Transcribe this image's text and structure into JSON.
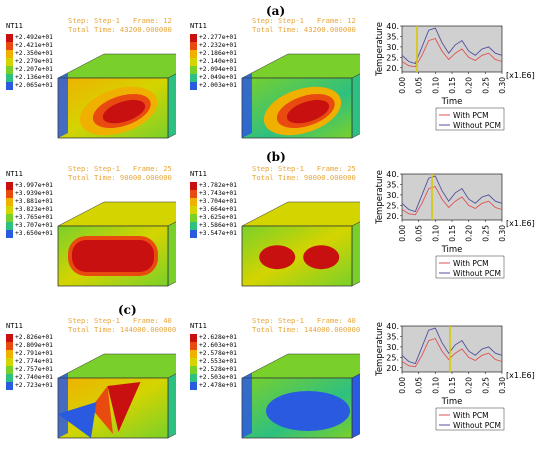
{
  "panels": [
    {
      "label": "(a)",
      "sims": [
        {
          "variable": "NT11",
          "step_line": "Step: Step-1   Frame: 12",
          "time_line": "Total Time: 43200.000000",
          "legend": [
            "+2.492e+01",
            "+2.421e+01",
            "+2.350e+01",
            "+2.279e+01",
            "+2.207e+01",
            "+2.136e+01",
            "+2.065e+01"
          ]
        },
        {
          "variable": "NT11",
          "step_line": "Step: Step-1   Frame: 12",
          "time_line": "Total Time: 43200.000000",
          "legend": [
            "+2.277e+01",
            "+2.232e+01",
            "+2.186e+01",
            "+2.140e+01",
            "+2.094e+01",
            "+2.049e+01",
            "+2.003e+01"
          ]
        }
      ],
      "marker_x": 0.045
    },
    {
      "label": "(b)",
      "sims": [
        {
          "variable": "NT11",
          "step_line": "Step: Step-1   Frame: 25",
          "time_line": "Total Time: 90000.000000",
          "legend": [
            "+3.997e+01",
            "+3.939e+01",
            "+3.881e+01",
            "+3.823e+01",
            "+3.765e+01",
            "+3.707e+01",
            "+3.650e+01"
          ]
        },
        {
          "variable": "NT11",
          "step_line": "Step: Step-1   Frame: 25",
          "time_line": "Total Time: 90000.000000",
          "legend": [
            "+3.782e+01",
            "+3.743e+01",
            "+3.704e+01",
            "+3.664e+01",
            "+3.625e+01",
            "+3.586e+01",
            "+3.547e+01"
          ]
        }
      ],
      "marker_x": 0.09
    },
    {
      "label": "(c)",
      "sims": [
        {
          "variable": "NT11",
          "step_line": "Step: Step-1   Frame: 40",
          "time_line": "Total Time: 144000.000000",
          "legend": [
            "+2.826e+01",
            "+2.809e+01",
            "+2.791e+01",
            "+2.774e+01",
            "+2.757e+01",
            "+2.740e+01",
            "+2.723e+01"
          ]
        },
        {
          "variable": "NT11",
          "step_line": "Step: Step-1   Frame: 40",
          "time_line": "Total Time: 144000.000000",
          "legend": [
            "+2.628e+01",
            "+2.603e+01",
            "+2.578e+01",
            "+2.553e+01",
            "+2.528e+01",
            "+2.503e+01",
            "+2.478e+01"
          ]
        }
      ],
      "marker_x": 0.144
    }
  ],
  "plot": {
    "ylabel": "Temperature",
    "xlabel": "Time",
    "scale_label": "[x1.E6]",
    "x_ticks": [
      "0.00",
      "0.05",
      "0.10",
      "0.15",
      "0.20",
      "0.25",
      "0.30"
    ],
    "y_ticks": [
      "20.",
      "25.",
      "30.",
      "35.",
      "40."
    ],
    "xlim": [
      0,
      0.3
    ],
    "ylim": [
      18,
      40
    ],
    "series": [
      {
        "name": "With PCM",
        "color": "#e05050",
        "x": [
          0,
          0.02,
          0.04,
          0.06,
          0.08,
          0.1,
          0.12,
          0.14,
          0.16,
          0.18,
          0.2,
          0.22,
          0.24,
          0.26,
          0.28,
          0.3
        ],
        "y": [
          23,
          21,
          20.5,
          26,
          33,
          34,
          28,
          24,
          27,
          29,
          25,
          23.5,
          26,
          27,
          24,
          23
        ]
      },
      {
        "name": "Without PCM",
        "color": "#5050a0",
        "x": [
          0,
          0.02,
          0.04,
          0.06,
          0.08,
          0.1,
          0.12,
          0.14,
          0.16,
          0.18,
          0.2,
          0.22,
          0.24,
          0.26,
          0.28,
          0.3
        ],
        "y": [
          26,
          23,
          22,
          30,
          38,
          39,
          32,
          27,
          31,
          33,
          28,
          26,
          29,
          30,
          27,
          26
        ]
      }
    ],
    "marker_color": "#d8c800"
  },
  "colors": {
    "contour": [
      "#c81010",
      "#e84a10",
      "#f0b000",
      "#d4d400",
      "#7ad02a",
      "#2ec080",
      "#2a5ae0"
    ]
  }
}
